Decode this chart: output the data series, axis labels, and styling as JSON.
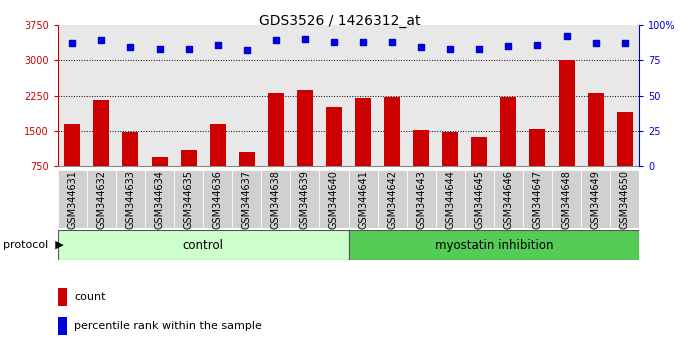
{
  "title": "GDS3526 / 1426312_at",
  "samples": [
    "GSM344631",
    "GSM344632",
    "GSM344633",
    "GSM344634",
    "GSM344635",
    "GSM344636",
    "GSM344637",
    "GSM344638",
    "GSM344639",
    "GSM344640",
    "GSM344641",
    "GSM344642",
    "GSM344643",
    "GSM344644",
    "GSM344645",
    "GSM344646",
    "GSM344647",
    "GSM344648",
    "GSM344649",
    "GSM344650"
  ],
  "bar_values": [
    1650,
    2150,
    1480,
    950,
    1100,
    1650,
    1050,
    2300,
    2370,
    2000,
    2200,
    2220,
    1530,
    1480,
    1380,
    2210,
    1540,
    3000,
    2310,
    1900
  ],
  "percentile_values": [
    87,
    89,
    84,
    83,
    83,
    86,
    82,
    89,
    90,
    88,
    88,
    88,
    84,
    83,
    83,
    85,
    86,
    92,
    87,
    87
  ],
  "bar_color": "#cc0000",
  "dot_color": "#0000dd",
  "ylim_left": [
    750,
    3750
  ],
  "ylim_right": [
    0,
    100
  ],
  "yticks_left": [
    750,
    1500,
    2250,
    3000,
    3750
  ],
  "yticks_right": [
    0,
    25,
    50,
    75,
    100
  ],
  "control_count": 10,
  "myostatin_count": 10,
  "protocol_label_control": "control",
  "protocol_label_myostatin": "myostatin inhibition",
  "protocol_label": "protocol",
  "legend_count_label": "count",
  "legend_pct_label": "percentile rank within the sample",
  "control_bg": "#ccffcc",
  "myostatin_bg": "#55cc55",
  "dotted_lines": [
    1500,
    2250,
    3000
  ],
  "title_fontsize": 10,
  "tick_fontsize": 7,
  "label_col_bg": "#d0d0d0"
}
